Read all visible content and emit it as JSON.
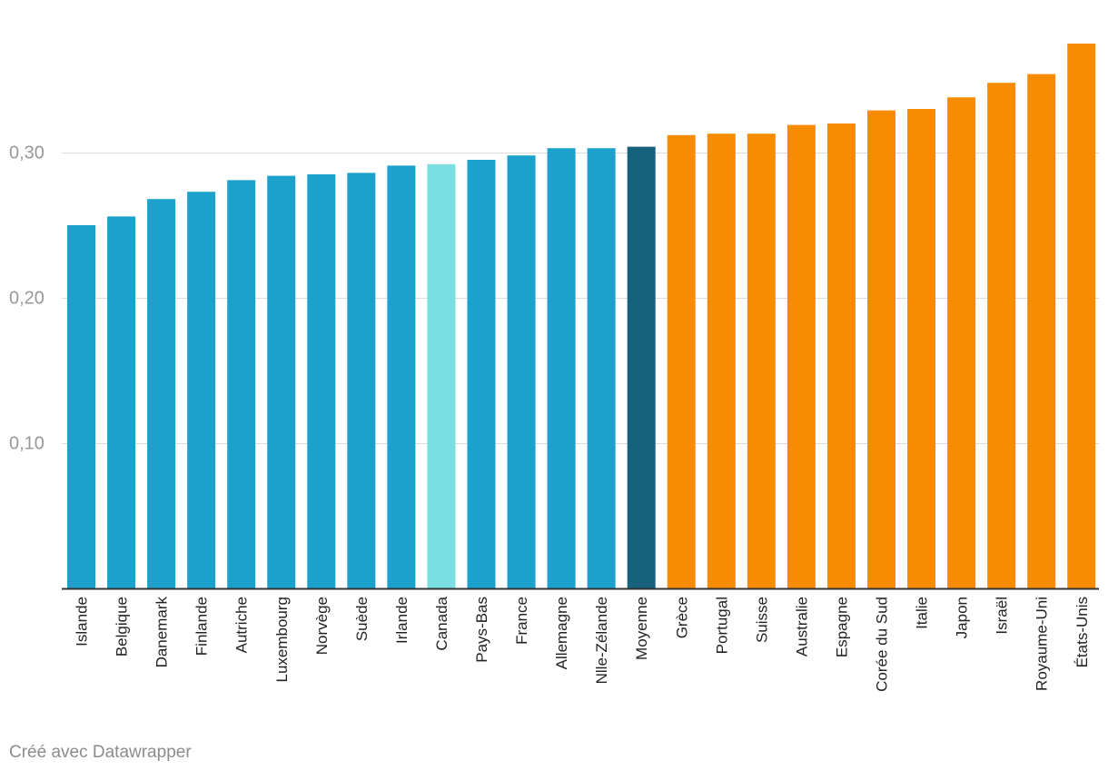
{
  "chart_data": {
    "type": "bar",
    "title": "",
    "xlabel": "",
    "ylabel": "",
    "ylim": [
      0,
      0.375
    ],
    "yticks": [
      0.1,
      0.2,
      0.3
    ],
    "ytick_labels": [
      "0,10",
      "0,20",
      "0,30"
    ],
    "grid": true,
    "categories": [
      "Islande",
      "Belgique",
      "Danemark",
      "Finlande",
      "Autriche",
      "Luxembourg",
      "Norvège",
      "Suède",
      "Irlande",
      "Canada",
      "Pays-Bas",
      "France",
      "Allemagne",
      "Nlle-Zélande",
      "Moyenne",
      "Grèce",
      "Portugal",
      "Suisse",
      "Australie",
      "Espagne",
      "Corée du Sud",
      "Italie",
      "Japon",
      "Israël",
      "Royaume-Uni",
      "États-Unis"
    ],
    "values": [
      0.25,
      0.256,
      0.268,
      0.273,
      0.281,
      0.284,
      0.285,
      0.286,
      0.291,
      0.292,
      0.295,
      0.298,
      0.303,
      0.303,
      0.304,
      0.312,
      0.313,
      0.313,
      0.319,
      0.32,
      0.329,
      0.33,
      0.338,
      0.348,
      0.354,
      0.375
    ],
    "bar_colors": [
      "#1ba1cc",
      "#1ba1cc",
      "#1ba1cc",
      "#1ba1cc",
      "#1ba1cc",
      "#1ba1cc",
      "#1ba1cc",
      "#1ba1cc",
      "#1ba1cc",
      "#7adee2",
      "#1ba1cc",
      "#1ba1cc",
      "#1ba1cc",
      "#1ba1cc",
      "#16627d",
      "#f78c00",
      "#f78c00",
      "#f78c00",
      "#f78c00",
      "#f78c00",
      "#f78c00",
      "#f78c00",
      "#f78c00",
      "#f78c00",
      "#f78c00",
      "#f78c00"
    ]
  },
  "colors": {
    "grid": "#dddddd",
    "axis": "#333333",
    "tick_label": "#999999",
    "category_label": "#222222"
  },
  "footer": {
    "credit": "Créé avec Datawrapper"
  }
}
